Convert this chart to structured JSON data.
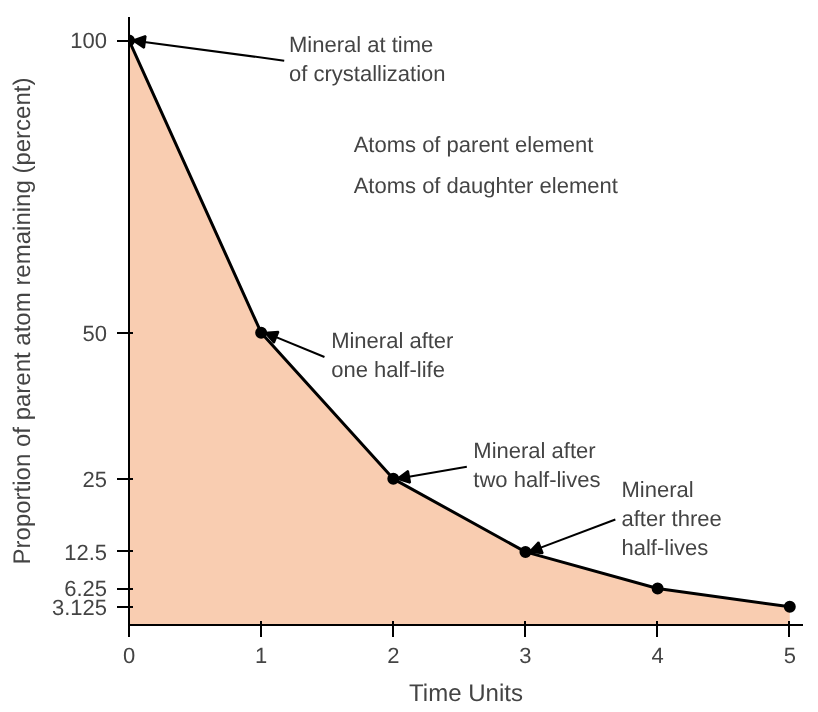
{
  "chart_data": {
    "type": "area",
    "xlabel": "Time Units",
    "ylabel": "Proportion of parent atom remaining (percent)",
    "x": [
      0,
      1,
      2,
      3,
      4,
      5
    ],
    "series": [
      {
        "color": "#f8c8a8",
        "values": [
          100,
          50,
          25,
          12.5,
          6.25,
          3.125
        ]
      }
    ],
    "xlim": [
      0,
      5.1
    ],
    "ylim": [
      0,
      104
    ],
    "xticks": [
      0,
      1,
      2,
      3,
      4,
      5
    ],
    "yticks": [
      3.125,
      6.25,
      12.5,
      25,
      50,
      100
    ],
    "marker": "circle",
    "grid": false,
    "annotations": [
      {
        "text": "Mineral at time\nof crystallization",
        "x": 0,
        "y": 100
      },
      {
        "text": "Mineral after\none half-life",
        "x": 1,
        "y": 50
      },
      {
        "text": "Mineral after\ntwo half-lives",
        "x": 2,
        "y": 25
      },
      {
        "text": "Mineral\nafter three\nhalf-lives",
        "x": 3,
        "y": 12.5
      },
      "Atoms of parent element",
      "Atoms of daughter element"
    ]
  }
}
